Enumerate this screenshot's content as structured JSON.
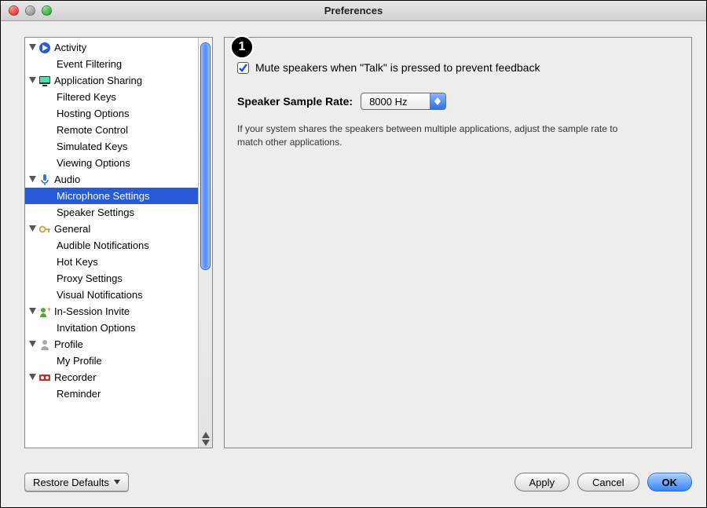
{
  "window": {
    "title": "Preferences"
  },
  "callout": "1",
  "sidebar": {
    "selected_index": 9,
    "groups": [
      {
        "label": "Activity",
        "icon": "arrow-blue",
        "children": [
          "Event Filtering"
        ]
      },
      {
        "label": "Application Sharing",
        "icon": "monitor",
        "children": [
          "Filtered Keys",
          "Hosting Options",
          "Remote Control",
          "Simulated Keys",
          "Viewing Options"
        ]
      },
      {
        "label": "Audio",
        "icon": "mic",
        "children": [
          "Microphone Settings",
          "Speaker Settings"
        ]
      },
      {
        "label": "General",
        "icon": "key",
        "children": [
          "Audible Notifications",
          "Hot Keys",
          "Proxy Settings",
          "Visual Notifications"
        ]
      },
      {
        "label": "In-Session Invite",
        "icon": "invite",
        "children": [
          "Invitation Options"
        ]
      },
      {
        "label": "Profile",
        "icon": "person",
        "children": [
          "My Profile"
        ]
      },
      {
        "label": "Recorder",
        "icon": "recorder",
        "children": [
          "Reminder"
        ]
      }
    ]
  },
  "panel": {
    "mute_label": "Mute speakers when \"Talk\" is pressed to prevent feedback",
    "mute_checked": true,
    "rate_label": "Speaker Sample Rate:",
    "rate_value": "8000 Hz",
    "help_text": "If your system shares the speakers between multiple applications, adjust the sample rate to match other applications."
  },
  "footer": {
    "restore": "Restore Defaults",
    "apply": "Apply",
    "cancel": "Cancel",
    "ok": "OK"
  },
  "colors": {
    "selection": "#2a5bd7",
    "default_button_start": "#a9d0ff",
    "default_button_end": "#3b85f2"
  }
}
